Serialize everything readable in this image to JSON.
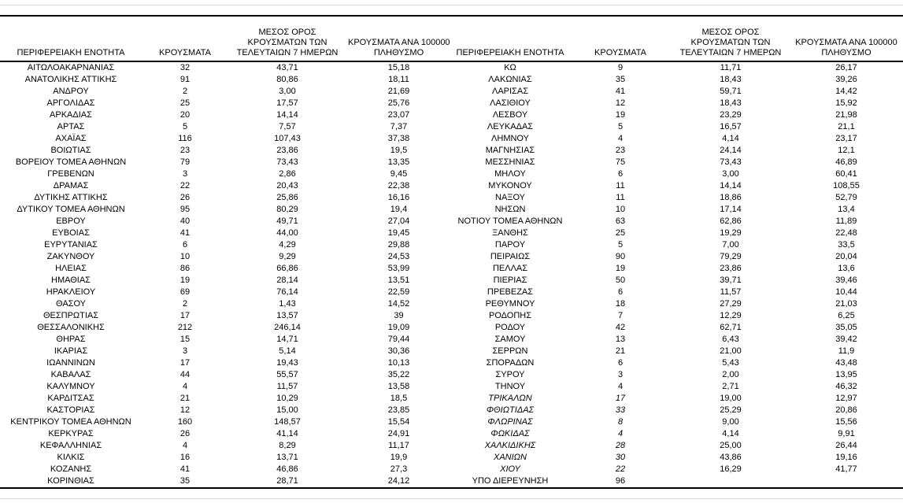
{
  "page": {
    "background": "#ffffff",
    "text_color": "#000000",
    "rule_gray_color": "#d9d9d9",
    "rule_black_color": "#000000"
  },
  "headers": {
    "region": "ΠΕΡΙΦΕΡΕΙΑΚΗ ΕΝΟΤΗΤΑ",
    "cases": "ΚΡΟΥΣΜΑΤΑ",
    "avg7_line1": "ΜΕΣΟΣ ΟΡΟΣ",
    "avg7_line2": "ΚΡΟΥΣΜΑΤΩΝ ΤΩΝ",
    "avg7_line3": "ΤΕΛΕΥΤΑΙΩΝ 7 ΗΜΕΡΩΝ",
    "per100k_line1": "ΚΡΟΥΣΜΑΤΑ ΑΝΑ 100000",
    "per100k_line2": "ΠΛΗΘΥΣΜΟ"
  },
  "left_table": {
    "rows": [
      {
        "region": "ΑΙΤΩΛΟΑΚΑΡΝΑΝΙΑΣ",
        "cases": "32",
        "avg7": "43,71",
        "per100k": "15,18",
        "italic": false
      },
      {
        "region": "ΑΝΑΤΟΛΙΚΗΣ ΑΤΤΙΚΗΣ",
        "cases": "91",
        "avg7": "80,86",
        "per100k": "18,11",
        "italic": false
      },
      {
        "region": "ΑΝΔΡΟΥ",
        "cases": "2",
        "avg7": "3,00",
        "per100k": "21,69",
        "italic": false
      },
      {
        "region": "ΑΡΓΟΛΙΔΑΣ",
        "cases": "25",
        "avg7": "17,57",
        "per100k": "25,76",
        "italic": false
      },
      {
        "region": "ΑΡΚΑΔΙΑΣ",
        "cases": "20",
        "avg7": "14,14",
        "per100k": "23,07",
        "italic": false
      },
      {
        "region": "ΑΡΤΑΣ",
        "cases": "5",
        "avg7": "7,57",
        "per100k": "7,37",
        "italic": false
      },
      {
        "region": "ΑΧΑΪΑΣ",
        "cases": "116",
        "avg7": "107,43",
        "per100k": "37,38",
        "italic": false
      },
      {
        "region": "ΒΟΙΩΤΙΑΣ",
        "cases": "23",
        "avg7": "23,86",
        "per100k": "19,5",
        "italic": false
      },
      {
        "region": "ΒΟΡΕΙΟΥ ΤΟΜΕΑ ΑΘΗΝΩΝ",
        "cases": "79",
        "avg7": "73,43",
        "per100k": "13,35",
        "italic": false
      },
      {
        "region": "ΓΡΕΒΕΝΩΝ",
        "cases": "3",
        "avg7": "2,86",
        "per100k": "9,45",
        "italic": false
      },
      {
        "region": "ΔΡΑΜΑΣ",
        "cases": "22",
        "avg7": "20,43",
        "per100k": "22,38",
        "italic": false
      },
      {
        "region": "ΔΥΤΙΚΗΣ ΑΤΤΙΚΗΣ",
        "cases": "26",
        "avg7": "25,86",
        "per100k": "16,16",
        "italic": false
      },
      {
        "region": "ΔΥΤΙΚΟΥ ΤΟΜΕΑ ΑΘΗΝΩΝ",
        "cases": "95",
        "avg7": "80,29",
        "per100k": "19,4",
        "italic": false
      },
      {
        "region": "ΕΒΡΟΥ",
        "cases": "40",
        "avg7": "49,71",
        "per100k": "27,04",
        "italic": false
      },
      {
        "region": "ΕΥΒΟΙΑΣ",
        "cases": "41",
        "avg7": "44,00",
        "per100k": "19,45",
        "italic": false
      },
      {
        "region": "ΕΥΡΥΤΑΝΙΑΣ",
        "cases": "6",
        "avg7": "4,29",
        "per100k": "29,88",
        "italic": false
      },
      {
        "region": "ΖΑΚΥΝΘΟΥ",
        "cases": "10",
        "avg7": "9,29",
        "per100k": "24,53",
        "italic": false
      },
      {
        "region": "ΗΛΕΙΑΣ",
        "cases": "86",
        "avg7": "66,86",
        "per100k": "53,99",
        "italic": false
      },
      {
        "region": "ΗΜΑΘΙΑΣ",
        "cases": "19",
        "avg7": "28,14",
        "per100k": "13,51",
        "italic": false
      },
      {
        "region": "ΗΡΑΚΛΕΙΟΥ",
        "cases": "69",
        "avg7": "76,14",
        "per100k": "22,59",
        "italic": false
      },
      {
        "region": "ΘΑΣΟΥ",
        "cases": "2",
        "avg7": "1,43",
        "per100k": "14,52",
        "italic": false
      },
      {
        "region": "ΘΕΣΠΡΩΤΙΑΣ",
        "cases": "17",
        "avg7": "13,57",
        "per100k": "39",
        "italic": false
      },
      {
        "region": "ΘΕΣΣΑΛΟΝΙΚΗΣ",
        "cases": "212",
        "avg7": "246,14",
        "per100k": "19,09",
        "italic": false
      },
      {
        "region": "ΘΗΡΑΣ",
        "cases": "15",
        "avg7": "14,71",
        "per100k": "79,44",
        "italic": false
      },
      {
        "region": "ΙΚΑΡΙΑΣ",
        "cases": "3",
        "avg7": "5,14",
        "per100k": "30,36",
        "italic": false
      },
      {
        "region": "ΙΩΑΝΝΙΝΩΝ",
        "cases": "17",
        "avg7": "19,43",
        "per100k": "10,13",
        "italic": false
      },
      {
        "region": "ΚΑΒΑΛΑΣ",
        "cases": "44",
        "avg7": "55,57",
        "per100k": "35,22",
        "italic": false
      },
      {
        "region": "ΚΑΛΥΜΝΟΥ",
        "cases": "4",
        "avg7": "11,57",
        "per100k": "13,58",
        "italic": false
      },
      {
        "region": "ΚΑΡΔΙΤΣΑΣ",
        "cases": "21",
        "avg7": "10,29",
        "per100k": "18,5",
        "italic": false
      },
      {
        "region": "ΚΑΣΤΟΡΙΑΣ",
        "cases": "12",
        "avg7": "15,00",
        "per100k": "23,85",
        "italic": false
      },
      {
        "region": "ΚΕΝΤΡΙΚΟΥ ΤΟΜΕΑ ΑΘΗΝΩΝ",
        "cases": "160",
        "avg7": "148,57",
        "per100k": "15,54",
        "italic": false
      },
      {
        "region": "ΚΕΡΚΥΡΑΣ",
        "cases": "26",
        "avg7": "41,14",
        "per100k": "24,91",
        "italic": false
      },
      {
        "region": "ΚΕΦΑΛΛΗΝΙΑΣ",
        "cases": "4",
        "avg7": "8,29",
        "per100k": "11,17",
        "italic": false
      },
      {
        "region": "ΚΙΛΚΙΣ",
        "cases": "16",
        "avg7": "13,71",
        "per100k": "19,9",
        "italic": false
      },
      {
        "region": "ΚΟΖΑΝΗΣ",
        "cases": "41",
        "avg7": "46,86",
        "per100k": "27,3",
        "italic": false
      },
      {
        "region": "ΚΟΡΙΝΘΙΑΣ",
        "cases": "35",
        "avg7": "28,71",
        "per100k": "24,12",
        "italic": false
      }
    ]
  },
  "right_table": {
    "rows": [
      {
        "region": "ΚΩ",
        "cases": "9",
        "avg7": "11,71",
        "per100k": "26,17",
        "italic": false
      },
      {
        "region": "ΛΑΚΩΝΙΑΣ",
        "cases": "35",
        "avg7": "18,43",
        "per100k": "39,26",
        "italic": false
      },
      {
        "region": "ΛΑΡΙΣΑΣ",
        "cases": "41",
        "avg7": "59,71",
        "per100k": "14,42",
        "italic": false
      },
      {
        "region": "ΛΑΣΙΘΙΟΥ",
        "cases": "12",
        "avg7": "18,43",
        "per100k": "15,92",
        "italic": false
      },
      {
        "region": "ΛΕΣΒΟΥ",
        "cases": "19",
        "avg7": "23,29",
        "per100k": "21,98",
        "italic": false
      },
      {
        "region": "ΛΕΥΚΑΔΑΣ",
        "cases": "5",
        "avg7": "16,57",
        "per100k": "21,1",
        "italic": false
      },
      {
        "region": "ΛΗΜΝΟΥ",
        "cases": "4",
        "avg7": "4,14",
        "per100k": "23,17",
        "italic": false
      },
      {
        "region": "ΜΑΓΝΗΣΙΑΣ",
        "cases": "23",
        "avg7": "24,14",
        "per100k": "12,1",
        "italic": false
      },
      {
        "region": "ΜΕΣΣΗΝΙΑΣ",
        "cases": "75",
        "avg7": "73,43",
        "per100k": "46,89",
        "italic": false
      },
      {
        "region": "ΜΗΛΟΥ",
        "cases": "6",
        "avg7": "3,00",
        "per100k": "60,41",
        "italic": false
      },
      {
        "region": "ΜΥΚΟΝΟΥ",
        "cases": "11",
        "avg7": "14,14",
        "per100k": "108,55",
        "italic": false
      },
      {
        "region": "ΝΑΞΟΥ",
        "cases": "11",
        "avg7": "18,86",
        "per100k": "52,79",
        "italic": false
      },
      {
        "region": "ΝΗΣΩΝ",
        "cases": "10",
        "avg7": "17,14",
        "per100k": "13,4",
        "italic": false
      },
      {
        "region": "ΝΟΤΙΟΥ ΤΟΜΕΑ ΑΘΗΝΩΝ",
        "cases": "63",
        "avg7": "62,86",
        "per100k": "11,89",
        "italic": false
      },
      {
        "region": "ΞΑΝΘΗΣ",
        "cases": "25",
        "avg7": "19,29",
        "per100k": "22,48",
        "italic": false
      },
      {
        "region": "ΠΑΡΟΥ",
        "cases": "5",
        "avg7": "7,00",
        "per100k": "33,5",
        "italic": false
      },
      {
        "region": "ΠΕΙΡΑΙΩΣ",
        "cases": "90",
        "avg7": "79,29",
        "per100k": "20,04",
        "italic": false
      },
      {
        "region": "ΠΕΛΛΑΣ",
        "cases": "19",
        "avg7": "23,86",
        "per100k": "13,6",
        "italic": false
      },
      {
        "region": "ΠΙΕΡΙΑΣ",
        "cases": "50",
        "avg7": "39,71",
        "per100k": "39,46",
        "italic": false
      },
      {
        "region": "ΠΡΕΒΕΖΑΣ",
        "cases": "6",
        "avg7": "11,57",
        "per100k": "10,44",
        "italic": false
      },
      {
        "region": "ΡΕΘΥΜΝΟΥ",
        "cases": "18",
        "avg7": "27,29",
        "per100k": "21,03",
        "italic": false
      },
      {
        "region": "ΡΟΔΟΠΗΣ",
        "cases": "7",
        "avg7": "12,29",
        "per100k": "6,25",
        "italic": false
      },
      {
        "region": "ΡΟΔΟΥ",
        "cases": "42",
        "avg7": "62,71",
        "per100k": "35,05",
        "italic": false
      },
      {
        "region": "ΣΑΜΟΥ",
        "cases": "13",
        "avg7": "6,43",
        "per100k": "39,42",
        "italic": false
      },
      {
        "region": "ΣΕΡΡΩΝ",
        "cases": "21",
        "avg7": "21,00",
        "per100k": "11,9",
        "italic": false
      },
      {
        "region": "ΣΠΟΡΑΔΩΝ",
        "cases": "6",
        "avg7": "5,43",
        "per100k": "43,48",
        "italic": false
      },
      {
        "region": "ΣΥΡΟΥ",
        "cases": "3",
        "avg7": "2,00",
        "per100k": "13,95",
        "italic": false
      },
      {
        "region": "ΤΗΝΟΥ",
        "cases": "4",
        "avg7": "2,71",
        "per100k": "46,32",
        "italic": false
      },
      {
        "region": "ΤΡΙΚΑΛΩΝ",
        "cases": "17",
        "avg7": "19,00",
        "per100k": "12,97",
        "italic": true
      },
      {
        "region": "ΦΘΙΩΤΙΔΑΣ",
        "cases": "33",
        "avg7": "25,29",
        "per100k": "20,86",
        "italic": true
      },
      {
        "region": "ΦΛΩΡΙΝΑΣ",
        "cases": "8",
        "avg7": "9,00",
        "per100k": "15,56",
        "italic": true
      },
      {
        "region": "ΦΩΚΙΔΑΣ",
        "cases": "4",
        "avg7": "4,14",
        "per100k": "9,91",
        "italic": true
      },
      {
        "region": "ΧΑΛΚΙΔΙΚΗΣ",
        "cases": "28",
        "avg7": "25,00",
        "per100k": "26,44",
        "italic": true
      },
      {
        "region": "ΧΑΝΙΩΝ",
        "cases": "30",
        "avg7": "43,86",
        "per100k": "19,16",
        "italic": true
      },
      {
        "region": "ΧΙΟΥ",
        "cases": "22",
        "avg7": "16,29",
        "per100k": "41,77",
        "italic": true
      },
      {
        "region": "ΥΠΟ ΔΙΕΡΕΥΝΗΣΗ",
        "cases": "96",
        "avg7": "",
        "per100k": "",
        "italic": false
      }
    ]
  }
}
